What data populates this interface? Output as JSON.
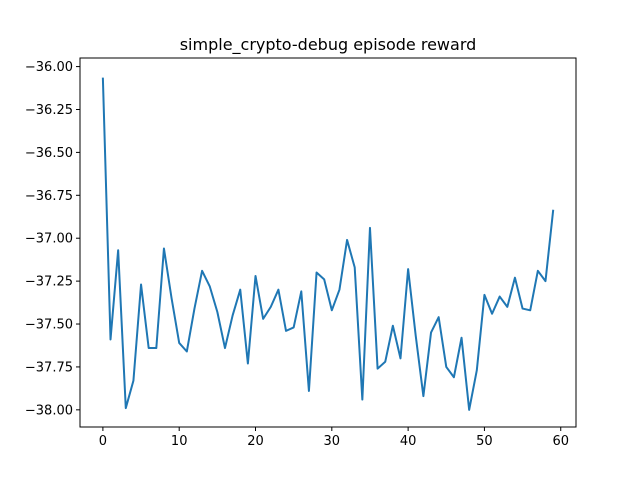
{
  "chart_data": {
    "type": "line",
    "title": "simple_crypto-debug episode reward",
    "xlabel": "",
    "ylabel": "",
    "xlim": [
      -3,
      62
    ],
    "ylim": [
      -38.1,
      -35.95
    ],
    "xticks": [
      0,
      10,
      20,
      30,
      40,
      50,
      60
    ],
    "yticks": [
      -36.0,
      -36.25,
      -36.5,
      -36.75,
      -37.0,
      -37.25,
      -37.5,
      -37.75,
      -38.0
    ],
    "ytick_labels": [
      "−36.00",
      "−36.25",
      "−36.50",
      "−36.75",
      "−37.00",
      "−37.25",
      "−37.50",
      "−37.75",
      "−38.00"
    ],
    "grid": false,
    "legend": "none",
    "series": [
      {
        "color": "#1f77b4",
        "x": [
          0,
          1,
          2,
          3,
          4,
          5,
          6,
          7,
          8,
          9,
          10,
          11,
          12,
          13,
          14,
          15,
          16,
          17,
          18,
          19,
          20,
          21,
          22,
          23,
          24,
          25,
          26,
          27,
          28,
          29,
          30,
          31,
          32,
          33,
          34,
          35,
          36,
          37,
          38,
          39,
          40,
          41,
          42,
          43,
          44,
          45,
          46,
          47,
          48,
          49,
          50,
          51,
          52,
          53,
          54,
          55,
          56,
          57,
          58,
          59
        ],
        "values": [
          -36.07,
          -37.59,
          -37.07,
          -37.99,
          -37.83,
          -37.27,
          -37.64,
          -37.64,
          -37.06,
          -37.35,
          -37.61,
          -37.66,
          -37.41,
          -37.19,
          -37.28,
          -37.43,
          -37.64,
          -37.45,
          -37.3,
          -37.73,
          -37.22,
          -37.47,
          -37.4,
          -37.3,
          -37.54,
          -37.52,
          -37.31,
          -37.89,
          -37.2,
          -37.24,
          -37.42,
          -37.3,
          -37.01,
          -37.17,
          -37.94,
          -36.94,
          -37.76,
          -37.72,
          -37.51,
          -37.7,
          -37.18,
          -37.57,
          -37.92,
          -37.55,
          -37.46,
          -37.75,
          -37.81,
          -37.58,
          -38.0,
          -37.77,
          -37.33,
          -37.44,
          -37.34,
          -37.4,
          -37.23,
          -37.41,
          -37.42,
          -37.19,
          -37.25,
          -36.84
        ]
      }
    ]
  }
}
